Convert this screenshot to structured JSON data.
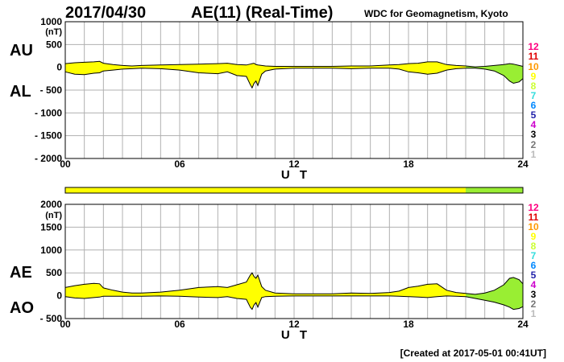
{
  "header": {
    "date": "2017/04/30",
    "title": "AE(11) (Real-Time)",
    "institution": "WDC for Geomagnetism, Kyoto"
  },
  "footer": "[Created at 2017-05-01 00:41UT]",
  "labels": {
    "au": "AU",
    "al": "AL",
    "ae": "AE",
    "ao": "AO"
  },
  "legend": {
    "levels": [
      "12",
      "11",
      "10",
      "9",
      "8",
      "7",
      "6",
      "5",
      "4",
      "3",
      "2",
      "1"
    ],
    "colors": [
      "#ff0080",
      "#e00000",
      "#ff9900",
      "#ffff00",
      "#ccff33",
      "#33dddd",
      "#0088ff",
      "#2222aa",
      "#cc00cc",
      "#000000",
      "#777777",
      "#bbbbbb"
    ]
  },
  "chart_data": [
    {
      "type": "area",
      "series_names": [
        "AU",
        "AL"
      ],
      "unit": "(nT)",
      "xlabel": "U T",
      "x_ticks": [
        0,
        6,
        12,
        18,
        24
      ],
      "x_tick_labels": [
        "00",
        "06",
        "12",
        "18",
        "24"
      ],
      "xlim": [
        0,
        24
      ],
      "ylim": [
        -2000,
        1000
      ],
      "y_ticks": [
        1000,
        500,
        0,
        -500,
        -1000,
        -1500,
        -2000
      ],
      "y_tick_labels": [
        "1000",
        "500",
        "0",
        "- 500",
        "- 1000",
        "- 1500",
        "- 2000"
      ],
      "grid": true,
      "fill_colors": {
        "yellow": "#ffff00",
        "green": "#99ee33"
      },
      "green_from_hour": 21.0,
      "x": [
        0,
        0.5,
        1,
        1.5,
        1.8,
        2,
        2.5,
        3,
        3.5,
        4,
        5,
        6,
        7,
        8,
        8.5,
        9,
        9.5,
        9.7,
        9.8,
        9.9,
        10,
        10.1,
        10.3,
        10.5,
        11,
        12,
        13,
        14,
        15,
        16,
        17,
        17.5,
        18,
        18.5,
        19,
        19.5,
        20,
        20.5,
        21,
        21.5,
        22,
        22.5,
        23,
        23.3,
        23.5,
        23.8,
        24
      ],
      "au": [
        80,
        100,
        110,
        120,
        130,
        90,
        60,
        40,
        30,
        40,
        50,
        60,
        70,
        80,
        90,
        60,
        50,
        70,
        80,
        90,
        60,
        50,
        40,
        30,
        20,
        20,
        20,
        20,
        30,
        30,
        50,
        60,
        80,
        90,
        120,
        120,
        60,
        40,
        30,
        10,
        20,
        40,
        60,
        80,
        70,
        40,
        20
      ],
      "al": [
        -100,
        -150,
        -160,
        -130,
        -120,
        -80,
        -60,
        -40,
        -30,
        -20,
        -30,
        -60,
        -120,
        -140,
        -100,
        -180,
        -200,
        -380,
        -450,
        -350,
        -300,
        -400,
        -150,
        -80,
        -40,
        -20,
        -20,
        -20,
        -30,
        -20,
        -20,
        -40,
        -100,
        -120,
        -150,
        -130,
        -60,
        -30,
        -20,
        -20,
        -40,
        -80,
        -180,
        -300,
        -350,
        -320,
        -250
      ]
    },
    {
      "type": "area",
      "series_names": [
        "AE",
        "AO"
      ],
      "unit": "(nT)",
      "xlabel": "U T",
      "x_ticks": [
        0,
        6,
        12,
        18,
        24
      ],
      "x_tick_labels": [
        "00",
        "06",
        "12",
        "18",
        "24"
      ],
      "xlim": [
        0,
        24
      ],
      "ylim": [
        -500,
        2000
      ],
      "y_ticks": [
        2000,
        1500,
        1000,
        500,
        0,
        -500
      ],
      "y_tick_labels": [
        "2000",
        "1500",
        "1000",
        "500",
        "0",
        "- 500"
      ],
      "grid": true,
      "fill_colors": {
        "yellow": "#ffff00",
        "green": "#99ee33"
      },
      "green_from_hour": 21.0,
      "x": [
        0,
        0.5,
        1,
        1.5,
        1.8,
        2,
        2.5,
        3,
        3.5,
        4,
        5,
        6,
        7,
        8,
        8.5,
        9,
        9.5,
        9.7,
        9.8,
        9.9,
        10,
        10.1,
        10.3,
        10.5,
        11,
        12,
        13,
        14,
        15,
        16,
        17,
        17.5,
        18,
        18.5,
        19,
        19.5,
        20,
        20.5,
        21,
        21.5,
        22,
        22.5,
        23,
        23.3,
        23.5,
        23.8,
        24
      ],
      "ae": [
        180,
        220,
        250,
        270,
        260,
        170,
        120,
        80,
        60,
        60,
        80,
        120,
        180,
        200,
        180,
        240,
        300,
        450,
        500,
        420,
        380,
        450,
        200,
        120,
        60,
        40,
        40,
        40,
        60,
        50,
        70,
        100,
        180,
        210,
        250,
        260,
        120,
        70,
        50,
        30,
        60,
        120,
        240,
        380,
        400,
        350,
        260
      ],
      "ao": [
        -20,
        -50,
        -60,
        -40,
        -30,
        -10,
        -10,
        -10,
        -10,
        -10,
        -5,
        -10,
        -30,
        -40,
        -20,
        -60,
        -80,
        -250,
        -300,
        -200,
        -150,
        -250,
        -40,
        -20,
        -10,
        -5,
        -5,
        -5,
        -5,
        -5,
        -5,
        -10,
        -20,
        -30,
        -40,
        -20,
        -5,
        -10,
        -20,
        -60,
        -100,
        -140,
        -200,
        -250,
        -300,
        -280,
        -240
      ]
    }
  ]
}
